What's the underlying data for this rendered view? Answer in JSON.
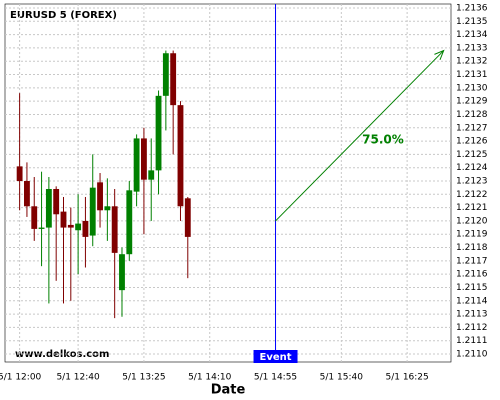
{
  "chart_data": {
    "type": "candlestick",
    "title": "EURUSD 5 (FOREX)",
    "watermark": "www.delkos.com",
    "x_label": "Date",
    "x": [
      "5/1 12:00",
      "5/1 12:05",
      "5/1 12:10",
      "5/1 12:15",
      "5/1 12:20",
      "5/1 12:25",
      "5/1 12:30",
      "5/1 12:35",
      "5/1 12:40",
      "5/1 12:45",
      "5/1 12:50",
      "5/1 12:55",
      "5/1 13:00",
      "5/1 13:05",
      "5/1 13:10",
      "5/1 13:15",
      "5/1 13:20",
      "5/1 13:25",
      "5/1 13:30",
      "5/1 13:35",
      "5/1 13:40",
      "5/1 13:45",
      "5/1 13:50",
      "5/1 13:55"
    ],
    "open": [
      1.21241,
      1.2123,
      1.21211,
      1.21194,
      1.21195,
      1.21224,
      1.21207,
      1.21197,
      1.21193,
      1.212,
      1.21189,
      1.21229,
      1.21208,
      1.21211,
      1.21148,
      1.21175,
      1.21222,
      1.21262,
      1.21231,
      1.21238,
      1.21294,
      1.21326,
      1.21287,
      1.21217
    ],
    "high": [
      1.21296,
      1.21244,
      1.21233,
      1.21237,
      1.21233,
      1.21226,
      1.21218,
      1.2121,
      1.2122,
      1.21218,
      1.2125,
      1.21236,
      1.21232,
      1.21224,
      1.2118,
      1.2123,
      1.21265,
      1.2127,
      1.21262,
      1.21298,
      1.21328,
      1.21328,
      1.2129,
      1.21218
    ],
    "low": [
      1.21208,
      1.21203,
      1.21185,
      1.21166,
      1.21138,
      1.21155,
      1.21138,
      1.2114,
      1.2116,
      1.21165,
      1.21181,
      1.21195,
      1.21185,
      1.21127,
      1.21128,
      1.2117,
      1.21211,
      1.2119,
      1.212,
      1.2122,
      1.21268,
      1.2125,
      1.212,
      1.21157
    ],
    "close": [
      1.2123,
      1.21211,
      1.21194,
      1.21195,
      1.21224,
      1.21205,
      1.21195,
      1.21195,
      1.21198,
      1.21188,
      1.21225,
      1.21208,
      1.21211,
      1.21176,
      1.21175,
      1.21223,
      1.21262,
      1.21231,
      1.21238,
      1.21294,
      1.21326,
      1.21287,
      1.21211,
      1.21188
    ],
    "up_color": "#008000",
    "down_color": "#800000",
    "xlim": [
      "5/1 11:50",
      "5/1 16:55"
    ],
    "xticks": [
      "5/1 12:00",
      "5/1 12:40",
      "5/1 13:25",
      "5/1 14:10",
      "5/1 14:55",
      "5/1 15:40",
      "5/1 16:25"
    ],
    "ylim": [
      1.21094,
      1.21363
    ],
    "yticks": [
      {
        "value": 1.211,
        "label": "1.2110"
      },
      1.2111,
      1.2112,
      1.2113,
      1.2114,
      1.2115,
      1.2116,
      1.2117,
      1.2118,
      1.2119,
      {
        "value": 1.212,
        "label": "1.2120"
      },
      1.2121,
      1.2122,
      1.2123,
      1.2124,
      1.2125,
      1.2126,
      1.2127,
      1.2128,
      1.2129,
      {
        "value": 1.213,
        "label": "1.2130"
      },
      1.2131,
      1.2132,
      1.2133,
      1.2134,
      1.2135,
      1.2136
    ],
    "grid": true,
    "event": {
      "x": "5/1 14:55",
      "label": "Event",
      "color": "#0000ff"
    },
    "arrow": {
      "x": [
        "5/1 14:55",
        "5/1 16:50"
      ],
      "y": [
        1.212,
        1.21328
      ],
      "label": "75.0%",
      "color": "#008000"
    }
  }
}
